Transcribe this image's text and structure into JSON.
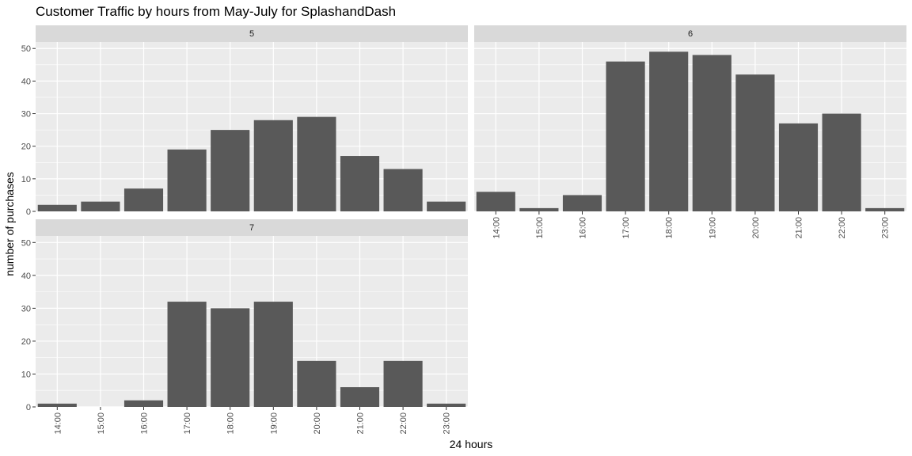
{
  "chart_data": {
    "type": "bar",
    "title": "Customer Traffic by hours from May-July for SplashandDash",
    "xlabel": "24 hours",
    "ylabel": "number of purchases",
    "ylim": [
      0,
      52
    ],
    "yticks": [
      0,
      10,
      20,
      30,
      40,
      50
    ],
    "categories": [
      "14:00",
      "15:00",
      "16:00",
      "17:00",
      "18:00",
      "19:00",
      "20:00",
      "21:00",
      "22:00",
      "23:00"
    ],
    "grid": true,
    "legend": "none",
    "colors": {
      "bar": "#595959",
      "panel": "#ebebeb",
      "strip": "#d9d9d9",
      "grid": "#ffffff"
    },
    "facets": [
      {
        "label": "5",
        "values": [
          2,
          3,
          7,
          19,
          25,
          28,
          29,
          17,
          13,
          3
        ]
      },
      {
        "label": "6",
        "values": [
          6,
          1,
          5,
          46,
          49,
          48,
          42,
          27,
          30,
          1
        ]
      },
      {
        "label": "7",
        "values": [
          1,
          0,
          2,
          32,
          30,
          32,
          14,
          6,
          14,
          1
        ]
      }
    ]
  }
}
